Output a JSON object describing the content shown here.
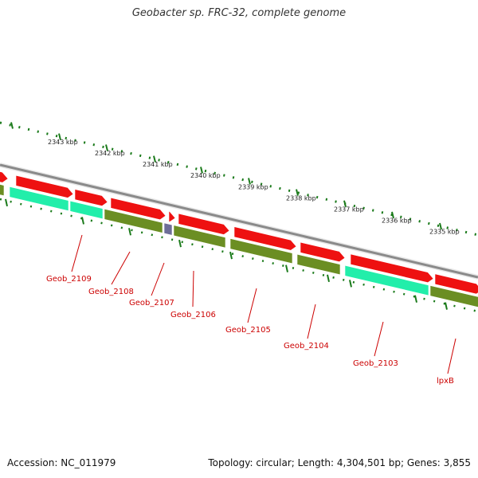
{
  "title": "Geobacter sp. FRC-32, complete genome",
  "footer": {
    "accession": "Accession: NC_011979",
    "summary": "Topology: circular; Length: 4,304,501 bp; Genes: 3,855"
  },
  "colors": {
    "backbone": "#8a8a8a",
    "tick": "#1a7a1a",
    "forward_gene": "#ee1111",
    "reverse_gene_cds": "#6b8e23",
    "reverse_gene_rna": "#22eeaa",
    "unknown": "#6e6e99",
    "label": "#cc0000"
  },
  "ruler": [
    {
      "label": "2343 kbp"
    },
    {
      "label": "2342 kbp"
    },
    {
      "label": "2341 kbp"
    },
    {
      "label": "2340 kbp"
    },
    {
      "label": "2339 kbp"
    },
    {
      "label": "2338 kbp"
    },
    {
      "label": "2337 kbp"
    },
    {
      "label": "2336 kbp"
    },
    {
      "label": "2335 kbp"
    }
  ],
  "gene_labels": [
    {
      "name": "Geob_2109"
    },
    {
      "name": "Geob_2108"
    },
    {
      "name": "Geob_2107"
    },
    {
      "name": "Geob_2106"
    },
    {
      "name": "Geob_2105"
    },
    {
      "name": "Geob_2104"
    },
    {
      "name": "Geob_2103"
    },
    {
      "name": "lpxB"
    }
  ]
}
